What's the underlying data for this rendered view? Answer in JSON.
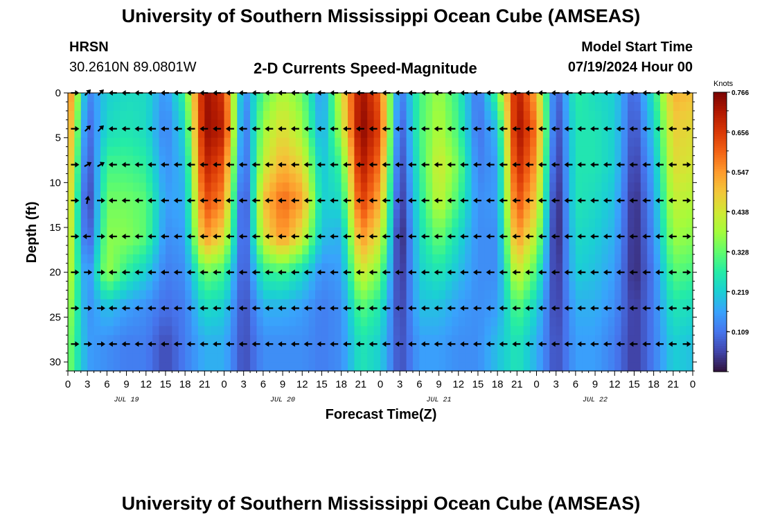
{
  "header": {
    "title": "University of Southern Mississippi Ocean Cube (AMSEAS)",
    "station": "HRSN",
    "coords": "30.2610N  89.0801W",
    "subtitle": "2-D Currents Speed-Magnitude",
    "model_start_label": "Model Start Time",
    "model_start_value": "07/19/2024 Hour 00"
  },
  "footer": {
    "title": "University of Southern Mississippi Ocean Cube (AMSEAS)"
  },
  "colors": {
    "scale": [
      "#30123b",
      "#4145ab",
      "#4675ed",
      "#39a2fc",
      "#1bcfd4",
      "#24eca6",
      "#61fc6c",
      "#a4fc3b",
      "#d1e834",
      "#f3c63a",
      "#fe9b2d",
      "#f36315",
      "#d93806",
      "#b11901",
      "#7a0403"
    ],
    "arrow": "#000000"
  },
  "chart_data": {
    "type": "heatmap",
    "xlabel": "Forecast Time(Z)",
    "ylabel": "Depth (ft)",
    "colorbar_label": "Knots",
    "colorbar_ticks": [
      0.766,
      0.656,
      0.547,
      0.438,
      0.328,
      0.219,
      0.109
    ],
    "value_range": [
      0.0,
      0.766
    ],
    "x_range_hours": [
      0,
      96
    ],
    "x_tick_labels": [
      "0",
      "3",
      "6",
      "9",
      "12",
      "15",
      "18",
      "21",
      "0",
      "3",
      "6",
      "9",
      "12",
      "15",
      "18",
      "21",
      "0",
      "3",
      "6",
      "9",
      "12",
      "15",
      "18",
      "21",
      "0",
      "3",
      "6",
      "9",
      "12",
      "15",
      "18",
      "21",
      "0"
    ],
    "date_labels": [
      {
        "label": "JUL 19",
        "hour": 9
      },
      {
        "label": "JUL 20",
        "hour": 33
      },
      {
        "label": "JUL 21",
        "hour": 57
      },
      {
        "label": "JUL 22",
        "hour": 81
      }
    ],
    "y_range_ft": [
      0,
      31
    ],
    "y_ticks": [
      0,
      5,
      10,
      15,
      20,
      25,
      30
    ],
    "columns": [
      {
        "hour": 0,
        "speeds": [
          0.62,
          0.58,
          0.55,
          0.52,
          0.48,
          0.44,
          0.4,
          0.36
        ]
      },
      {
        "hour": 3,
        "speeds": [
          0.12,
          0.08,
          0.05,
          0.02,
          0.05,
          0.12,
          0.14,
          0.16
        ]
      },
      {
        "hour": 6,
        "speeds": [
          0.22,
          0.24,
          0.3,
          0.34,
          0.36,
          0.38,
          0.2,
          0.14
        ]
      },
      {
        "hour": 9,
        "speeds": [
          0.24,
          0.26,
          0.3,
          0.34,
          0.36,
          0.28,
          0.16,
          0.12
        ]
      },
      {
        "hour": 12,
        "speeds": [
          0.24,
          0.24,
          0.28,
          0.32,
          0.32,
          0.22,
          0.14,
          0.12
        ]
      },
      {
        "hour": 15,
        "speeds": [
          0.14,
          0.12,
          0.14,
          0.16,
          0.14,
          0.12,
          0.1,
          0.06
        ]
      },
      {
        "hour": 18,
        "speeds": [
          0.3,
          0.24,
          0.2,
          0.18,
          0.16,
          0.14,
          0.12,
          0.12
        ]
      },
      {
        "hour": 21,
        "speeds": [
          0.74,
          0.74,
          0.7,
          0.64,
          0.56,
          0.34,
          0.24,
          0.18
        ]
      },
      {
        "hour": 24,
        "speeds": [
          0.66,
          0.7,
          0.62,
          0.56,
          0.46,
          0.3,
          0.22,
          0.18
        ]
      },
      {
        "hour": 27,
        "speeds": [
          0.12,
          0.08,
          0.06,
          0.02,
          0.04,
          0.06,
          0.06,
          0.06
        ]
      },
      {
        "hour": 30,
        "speeds": [
          0.32,
          0.38,
          0.42,
          0.5,
          0.44,
          0.28,
          0.18,
          0.14
        ]
      },
      {
        "hour": 33,
        "speeds": [
          0.4,
          0.46,
          0.52,
          0.6,
          0.56,
          0.3,
          0.18,
          0.14
        ]
      },
      {
        "hour": 36,
        "speeds": [
          0.34,
          0.38,
          0.46,
          0.54,
          0.44,
          0.24,
          0.16,
          0.14
        ]
      },
      {
        "hour": 39,
        "speeds": [
          0.14,
          0.16,
          0.2,
          0.22,
          0.2,
          0.14,
          0.12,
          0.12
        ]
      },
      {
        "hour": 42,
        "speeds": [
          0.44,
          0.4,
          0.3,
          0.24,
          0.18,
          0.16,
          0.14,
          0.14
        ]
      },
      {
        "hour": 45,
        "speeds": [
          0.74,
          0.76,
          0.72,
          0.66,
          0.56,
          0.44,
          0.32,
          0.26
        ]
      },
      {
        "hour": 48,
        "speeds": [
          0.6,
          0.64,
          0.58,
          0.52,
          0.44,
          0.34,
          0.26,
          0.22
        ]
      },
      {
        "hour": 51,
        "speeds": [
          0.1,
          0.06,
          0.04,
          0.02,
          0.0,
          0.02,
          0.04,
          0.06
        ]
      },
      {
        "hour": 54,
        "speeds": [
          0.3,
          0.3,
          0.28,
          0.26,
          0.24,
          0.22,
          0.2,
          0.16
        ]
      },
      {
        "hour": 57,
        "speeds": [
          0.38,
          0.4,
          0.44,
          0.42,
          0.34,
          0.26,
          0.2,
          0.16
        ]
      },
      {
        "hour": 60,
        "speeds": [
          0.28,
          0.3,
          0.34,
          0.3,
          0.24,
          0.2,
          0.16,
          0.14
        ]
      },
      {
        "hour": 63,
        "speeds": [
          0.1,
          0.1,
          0.12,
          0.14,
          0.14,
          0.14,
          0.14,
          0.14
        ]
      },
      {
        "hour": 66,
        "speeds": [
          0.32,
          0.2,
          0.16,
          0.16,
          0.14,
          0.14,
          0.16,
          0.2
        ]
      },
      {
        "hour": 69,
        "speeds": [
          0.72,
          0.74,
          0.7,
          0.64,
          0.56,
          0.44,
          0.32,
          0.26
        ]
      },
      {
        "hour": 72,
        "speeds": [
          0.52,
          0.58,
          0.54,
          0.48,
          0.4,
          0.3,
          0.22,
          0.18
        ]
      },
      {
        "hour": 75,
        "speeds": [
          0.06,
          0.04,
          0.02,
          0.0,
          0.0,
          0.02,
          0.04,
          0.06
        ]
      },
      {
        "hour": 78,
        "speeds": [
          0.28,
          0.26,
          0.26,
          0.26,
          0.24,
          0.22,
          0.18,
          0.16
        ]
      },
      {
        "hour": 81,
        "speeds": [
          0.24,
          0.26,
          0.26,
          0.24,
          0.22,
          0.2,
          0.18,
          0.16
        ]
      },
      {
        "hour": 84,
        "speeds": [
          0.22,
          0.22,
          0.22,
          0.2,
          0.18,
          0.16,
          0.14,
          0.12
        ]
      },
      {
        "hour": 87,
        "speeds": [
          0.08,
          0.06,
          0.04,
          0.02,
          0.02,
          0.02,
          0.04,
          0.04
        ]
      },
      {
        "hour": 90,
        "speeds": [
          0.26,
          0.22,
          0.18,
          0.16,
          0.14,
          0.12,
          0.12,
          0.12
        ]
      },
      {
        "hour": 93,
        "speeds": [
          0.52,
          0.48,
          0.46,
          0.42,
          0.38,
          0.32,
          0.26,
          0.22
        ]
      },
      {
        "hour": 96,
        "speeds": [
          0.5,
          0.46,
          0.44,
          0.4,
          0.36,
          0.3,
          0.24,
          0.2
        ]
      }
    ],
    "column_depths_ft": [
      0,
      4,
      8,
      12,
      16,
      20,
      24,
      28
    ],
    "arrows": {
      "depths_ft": [
        0,
        4,
        8,
        12,
        16,
        20,
        24,
        28
      ],
      "hours": [
        0,
        2,
        4,
        6,
        8,
        10,
        12,
        14,
        16,
        18,
        20,
        22,
        24,
        26,
        28,
        30,
        32,
        34,
        36,
        38,
        40,
        42,
        44,
        46,
        48,
        50,
        52,
        54,
        56,
        58,
        60,
        62,
        64,
        66,
        68,
        70,
        72,
        74,
        76,
        78,
        80,
        82,
        84,
        86,
        88,
        90,
        92,
        94
      ],
      "directions_deg": [
        [
          0,
          315,
          315,
          180,
          180,
          180,
          180,
          180,
          180,
          180,
          180,
          180,
          180,
          180,
          180,
          180,
          180,
          180,
          180,
          180,
          180,
          180,
          180,
          180,
          180,
          180,
          180,
          180,
          180,
          180,
          180,
          180,
          180,
          180,
          180,
          180,
          180,
          180,
          180,
          180,
          180,
          180,
          180,
          180,
          180,
          180,
          180,
          0
        ],
        [
          0,
          315,
          315,
          180,
          180,
          180,
          180,
          180,
          180,
          180,
          180,
          180,
          180,
          180,
          180,
          180,
          180,
          180,
          180,
          180,
          180,
          180,
          180,
          180,
          180,
          180,
          180,
          180,
          180,
          180,
          180,
          180,
          180,
          180,
          180,
          180,
          180,
          180,
          180,
          180,
          180,
          180,
          180,
          180,
          180,
          180,
          180,
          0
        ],
        [
          0,
          330,
          330,
          180,
          180,
          180,
          180,
          180,
          180,
          180,
          180,
          180,
          180,
          180,
          180,
          180,
          180,
          180,
          180,
          180,
          180,
          180,
          180,
          180,
          180,
          180,
          180,
          180,
          180,
          180,
          180,
          180,
          180,
          180,
          180,
          180,
          180,
          180,
          180,
          180,
          180,
          180,
          180,
          180,
          180,
          180,
          180,
          0
        ],
        [
          0,
          280,
          0,
          180,
          180,
          180,
          180,
          180,
          180,
          180,
          180,
          180,
          180,
          180,
          180,
          180,
          180,
          180,
          180,
          180,
          180,
          180,
          180,
          180,
          180,
          180,
          180,
          180,
          180,
          180,
          180,
          180,
          180,
          180,
          180,
          180,
          180,
          180,
          180,
          180,
          180,
          180,
          180,
          180,
          180,
          180,
          180,
          0
        ],
        [
          0,
          180,
          0,
          180,
          180,
          180,
          180,
          180,
          180,
          180,
          180,
          180,
          180,
          180,
          180,
          180,
          180,
          180,
          180,
          180,
          180,
          180,
          180,
          180,
          180,
          180,
          180,
          180,
          180,
          180,
          180,
          180,
          180,
          180,
          180,
          180,
          180,
          180,
          180,
          180,
          180,
          180,
          180,
          180,
          180,
          180,
          180,
          0
        ],
        [
          0,
          0,
          0,
          180,
          180,
          180,
          180,
          180,
          180,
          180,
          180,
          180,
          180,
          180,
          180,
          180,
          180,
          180,
          180,
          180,
          180,
          180,
          180,
          180,
          180,
          180,
          180,
          180,
          180,
          180,
          180,
          180,
          180,
          180,
          180,
          180,
          180,
          180,
          180,
          180,
          180,
          180,
          180,
          180,
          180,
          180,
          180,
          0
        ],
        [
          0,
          0,
          0,
          180,
          180,
          180,
          180,
          180,
          180,
          180,
          180,
          180,
          180,
          180,
          180,
          180,
          180,
          180,
          180,
          180,
          180,
          180,
          180,
          180,
          180,
          180,
          180,
          180,
          180,
          180,
          180,
          180,
          180,
          180,
          180,
          180,
          180,
          180,
          180,
          180,
          180,
          180,
          180,
          180,
          180,
          180,
          180,
          0
        ],
        [
          0,
          0,
          0,
          180,
          180,
          180,
          180,
          180,
          180,
          180,
          180,
          180,
          180,
          180,
          180,
          180,
          180,
          180,
          180,
          180,
          180,
          180,
          180,
          180,
          180,
          180,
          180,
          180,
          180,
          180,
          180,
          180,
          180,
          180,
          180,
          180,
          180,
          180,
          180,
          180,
          180,
          180,
          180,
          180,
          180,
          180,
          180,
          0
        ]
      ]
    }
  }
}
